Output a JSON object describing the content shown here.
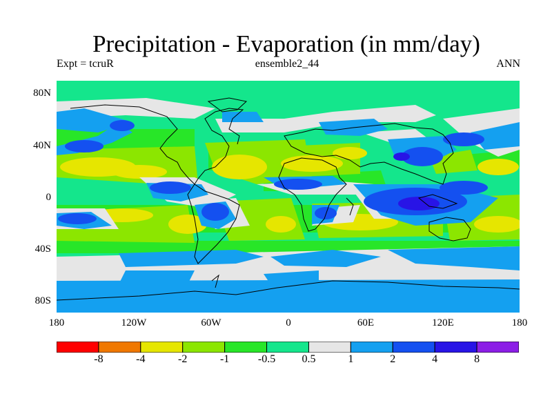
{
  "title": "Precipitation - Evaporation (in mm/day)",
  "subtitle_left": "Expt = tcruR",
  "subtitle_center": "ensemble2_44",
  "subtitle_right": "ANN",
  "lat_labels": [
    "80N",
    "40N",
    "0",
    "40S",
    "80S"
  ],
  "lon_labels": [
    "180",
    "120W",
    "60W",
    "0",
    "60E",
    "120E",
    "180"
  ],
  "colorbar": {
    "colors": [
      "#ff0000",
      "#f07800",
      "#e6e600",
      "#8ce600",
      "#28e628",
      "#14e68c",
      "#e6e6e6",
      "#14a0f0",
      "#1450f0",
      "#2814e6",
      "#8c1ee6"
    ],
    "labels": [
      "-8",
      "-4",
      "-2",
      "-1",
      "-0.5",
      "0.5",
      "1",
      "2",
      "4",
      "8"
    ]
  }
}
